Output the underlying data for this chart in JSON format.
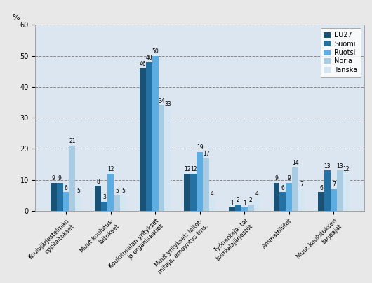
{
  "categories": [
    "Koulujärjestelmän\noppilaitokset",
    "Muut koulutus-\nlaitokset",
    "Koulutusalan yritykset\nja organisaatiot",
    "Muut yritykset: laitot-\nmitaja, emoyritys tms.",
    "Työnantaja- tai\ntoimialajärjestöt",
    "Ammattiliitot",
    "Muut koulutuksen\ntarjoajat"
  ],
  "series": {
    "EU27": [
      9,
      8,
      46,
      12,
      1,
      9,
      6
    ],
    "Suomi": [
      9,
      3,
      48,
      12,
      2,
      6,
      13
    ],
    "Ruotsi": [
      6,
      12,
      50,
      19,
      1,
      9,
      7
    ],
    "Norja": [
      21,
      5,
      34,
      17,
      2,
      14,
      13
    ],
    "Tanska": [
      5,
      5,
      33,
      4,
      4,
      7,
      12
    ]
  },
  "colors": {
    "EU27": "#1a5276",
    "Suomi": "#2471a3",
    "Ruotsi": "#5dade2",
    "Norja": "#a9cce3",
    "Tanska": "#d4e6f1"
  },
  "legend_labels": [
    "EU27",
    "Suomi",
    "Ruotsi",
    "Norja",
    "Tanska"
  ],
  "ylabel": "%",
  "ylim": [
    0,
    60
  ],
  "yticks": [
    0,
    10,
    20,
    30,
    40,
    50,
    60
  ],
  "plot_bg": "#eaf0f8",
  "fig_bg": "#f0f0f0",
  "outer_bg": "#d8d8d8"
}
